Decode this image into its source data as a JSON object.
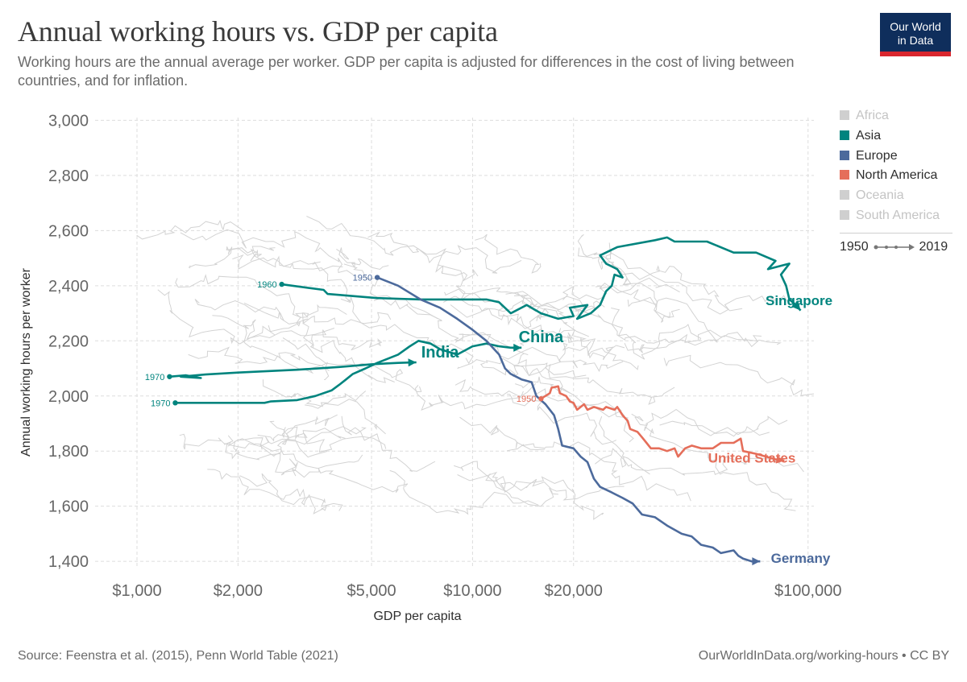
{
  "header": {
    "title": "Annual working hours vs. GDP per capita",
    "subtitle": "Working hours are the annual average per worker. GDP per capita is adjusted for differences in the cost of living between countries, and for inflation.",
    "logo_line1": "Our World",
    "logo_line2": "in Data"
  },
  "footer": {
    "source": "Source: Feenstra et al. (2015), Penn World Table (2021)",
    "link": "OurWorldInData.org/working-hours • CC BY"
  },
  "legend": {
    "items": [
      {
        "label": "Africa",
        "color": "#cfcfcf",
        "active": false
      },
      {
        "label": "Asia",
        "color": "#00847e",
        "active": true
      },
      {
        "label": "Europe",
        "color": "#4c6a9c",
        "active": true
      },
      {
        "label": "North America",
        "color": "#e56e5a",
        "active": true
      },
      {
        "label": "Oceania",
        "color": "#cfcfcf",
        "active": false
      },
      {
        "label": "South America",
        "color": "#cfcfcf",
        "active": false
      }
    ],
    "time_start": "1950",
    "time_end": "2019"
  },
  "chart_data": {
    "type": "line",
    "subtype": "connected scatter (log x-axis)",
    "title": "Annual working hours vs. GDP per capita",
    "xlabel": "GDP per capita",
    "ylabel": "Annual working hours per worker",
    "x_scale": "log",
    "xlim": [
      750,
      110000
    ],
    "ylim": [
      1380,
      3010
    ],
    "x_ticks": [
      {
        "value": 1000,
        "label": "$1,000"
      },
      {
        "value": 2000,
        "label": "$2,000"
      },
      {
        "value": 5000,
        "label": "$5,000"
      },
      {
        "value": 10000,
        "label": "$10,000"
      },
      {
        "value": 20000,
        "label": "$20,000"
      },
      {
        "value": 100000,
        "label": "$100,000"
      }
    ],
    "y_ticks": [
      {
        "value": 1400,
        "label": "1,400"
      },
      {
        "value": 1600,
        "label": "1,600"
      },
      {
        "value": 1800,
        "label": "1,800"
      },
      {
        "value": 2000,
        "label": "2,000"
      },
      {
        "value": 2200,
        "label": "2,200"
      },
      {
        "value": 2400,
        "label": "2,400"
      },
      {
        "value": 2600,
        "label": "2,600"
      },
      {
        "value": 2800,
        "label": "2,800"
      },
      {
        "value": 3000,
        "label": "3,000"
      }
    ],
    "series": [
      {
        "name": "Singapore",
        "region": "Asia",
        "color": "#00847e",
        "start_label": "1960",
        "label_at": [
          94000,
          2330
        ],
        "points": [
          [
            2700,
            2405
          ],
          [
            3600,
            2385
          ],
          [
            3700,
            2370
          ],
          [
            5200,
            2355
          ],
          [
            7000,
            2350
          ],
          [
            11000,
            2350
          ],
          [
            12000,
            2340
          ],
          [
            13000,
            2300
          ],
          [
            14500,
            2330
          ],
          [
            16000,
            2300
          ],
          [
            18000,
            2280
          ],
          [
            20000,
            2290
          ],
          [
            19500,
            2320
          ],
          [
            22000,
            2330
          ],
          [
            20500,
            2280
          ],
          [
            22500,
            2300
          ],
          [
            24000,
            2330
          ],
          [
            25000,
            2380
          ],
          [
            26000,
            2400
          ],
          [
            26500,
            2440
          ],
          [
            28000,
            2430
          ],
          [
            27000,
            2460
          ],
          [
            25000,
            2480
          ],
          [
            24000,
            2510
          ],
          [
            27000,
            2540
          ],
          [
            35000,
            2565
          ],
          [
            38000,
            2575
          ],
          [
            40000,
            2560
          ],
          [
            50000,
            2560
          ],
          [
            60000,
            2520
          ],
          [
            70000,
            2520
          ],
          [
            80000,
            2490
          ],
          [
            76000,
            2460
          ],
          [
            88000,
            2480
          ],
          [
            83000,
            2440
          ],
          [
            86000,
            2400
          ],
          [
            88000,
            2350
          ],
          [
            92000,
            2330
          ],
          [
            95000,
            2310
          ]
        ]
      },
      {
        "name": "China",
        "region": "Asia",
        "color": "#00847e",
        "start_label": "1970",
        "label_at": [
          16000,
          2195
        ],
        "points": [
          [
            1300,
            1975
          ],
          [
            1400,
            1975
          ],
          [
            1600,
            1975
          ],
          [
            2000,
            1975
          ],
          [
            2400,
            1975
          ],
          [
            2500,
            1980
          ],
          [
            3000,
            1985
          ],
          [
            3400,
            2000
          ],
          [
            3800,
            2020
          ],
          [
            4000,
            2040
          ],
          [
            4200,
            2060
          ],
          [
            4400,
            2080
          ],
          [
            4800,
            2100
          ],
          [
            5200,
            2120
          ],
          [
            6000,
            2150
          ],
          [
            6500,
            2180
          ],
          [
            6900,
            2200
          ],
          [
            7500,
            2190
          ],
          [
            8000,
            2170
          ],
          [
            9000,
            2150
          ],
          [
            10000,
            2180
          ],
          [
            11000,
            2190
          ],
          [
            12000,
            2180
          ],
          [
            13000,
            2175
          ],
          [
            14000,
            2175
          ]
        ]
      },
      {
        "name": "India",
        "region": "Asia",
        "color": "#00847e",
        "start_label": "1970",
        "label_at": [
          8000,
          2140
        ],
        "points": [
          [
            1250,
            2070
          ],
          [
            1400,
            2075
          ],
          [
            1550,
            2065
          ],
          [
            1350,
            2070
          ],
          [
            1600,
            2078
          ],
          [
            2000,
            2085
          ],
          [
            3000,
            2095
          ],
          [
            4000,
            2105
          ],
          [
            5000,
            2115
          ],
          [
            5500,
            2118
          ],
          [
            6000,
            2120
          ],
          [
            6800,
            2122
          ]
        ]
      },
      {
        "name": "Germany",
        "region": "Europe",
        "color": "#4c6a9c",
        "start_label": "1950",
        "label_at": [
          95000,
          1395
        ],
        "points": [
          [
            5200,
            2430
          ],
          [
            6000,
            2400
          ],
          [
            7000,
            2350
          ],
          [
            8000,
            2320
          ],
          [
            9000,
            2280
          ],
          [
            10000,
            2240
          ],
          [
            11000,
            2200
          ],
          [
            12000,
            2150
          ],
          [
            12500,
            2100
          ],
          [
            13000,
            2080
          ],
          [
            14000,
            2060
          ],
          [
            15000,
            2050
          ],
          [
            15500,
            2000
          ],
          [
            16500,
            1970
          ],
          [
            17500,
            1930
          ],
          [
            18000,
            1880
          ],
          [
            18500,
            1820
          ],
          [
            20000,
            1810
          ],
          [
            21000,
            1780
          ],
          [
            22000,
            1760
          ],
          [
            22500,
            1730
          ],
          [
            23000,
            1700
          ],
          [
            24000,
            1670
          ],
          [
            26000,
            1650
          ],
          [
            28000,
            1630
          ],
          [
            30000,
            1610
          ],
          [
            32000,
            1570
          ],
          [
            35000,
            1560
          ],
          [
            38000,
            1530
          ],
          [
            42000,
            1500
          ],
          [
            45000,
            1490
          ],
          [
            48000,
            1460
          ],
          [
            52000,
            1450
          ],
          [
            55000,
            1430
          ],
          [
            60000,
            1440
          ],
          [
            62000,
            1420
          ],
          [
            64000,
            1410
          ],
          [
            68000,
            1400
          ],
          [
            72000,
            1400
          ]
        ]
      },
      {
        "name": "United States",
        "region": "North America",
        "color": "#e56e5a",
        "start_label": "1950",
        "label_at": [
          68000,
          1758
        ],
        "points": [
          [
            16000,
            1990
          ],
          [
            17000,
            2010
          ],
          [
            17200,
            2030
          ],
          [
            18000,
            2035
          ],
          [
            18200,
            2010
          ],
          [
            19000,
            2000
          ],
          [
            19500,
            1980
          ],
          [
            20000,
            1975
          ],
          [
            20500,
            1950
          ],
          [
            21500,
            1970
          ],
          [
            22000,
            1950
          ],
          [
            23000,
            1960
          ],
          [
            24500,
            1950
          ],
          [
            25000,
            1960
          ],
          [
            26500,
            1950
          ],
          [
            27000,
            1960
          ],
          [
            28000,
            1930
          ],
          [
            29000,
            1910
          ],
          [
            29500,
            1880
          ],
          [
            31000,
            1870
          ],
          [
            32000,
            1850
          ],
          [
            33000,
            1830
          ],
          [
            34000,
            1810
          ],
          [
            36000,
            1810
          ],
          [
            38000,
            1800
          ],
          [
            40000,
            1810
          ],
          [
            41000,
            1780
          ],
          [
            43000,
            1810
          ],
          [
            45000,
            1820
          ],
          [
            48000,
            1810
          ],
          [
            52000,
            1810
          ],
          [
            55000,
            1830
          ],
          [
            60000,
            1830
          ],
          [
            63000,
            1845
          ],
          [
            64000,
            1800
          ],
          [
            70000,
            1790
          ],
          [
            75000,
            1780
          ],
          [
            80000,
            1770
          ],
          [
            85000,
            1765
          ]
        ]
      }
    ]
  }
}
